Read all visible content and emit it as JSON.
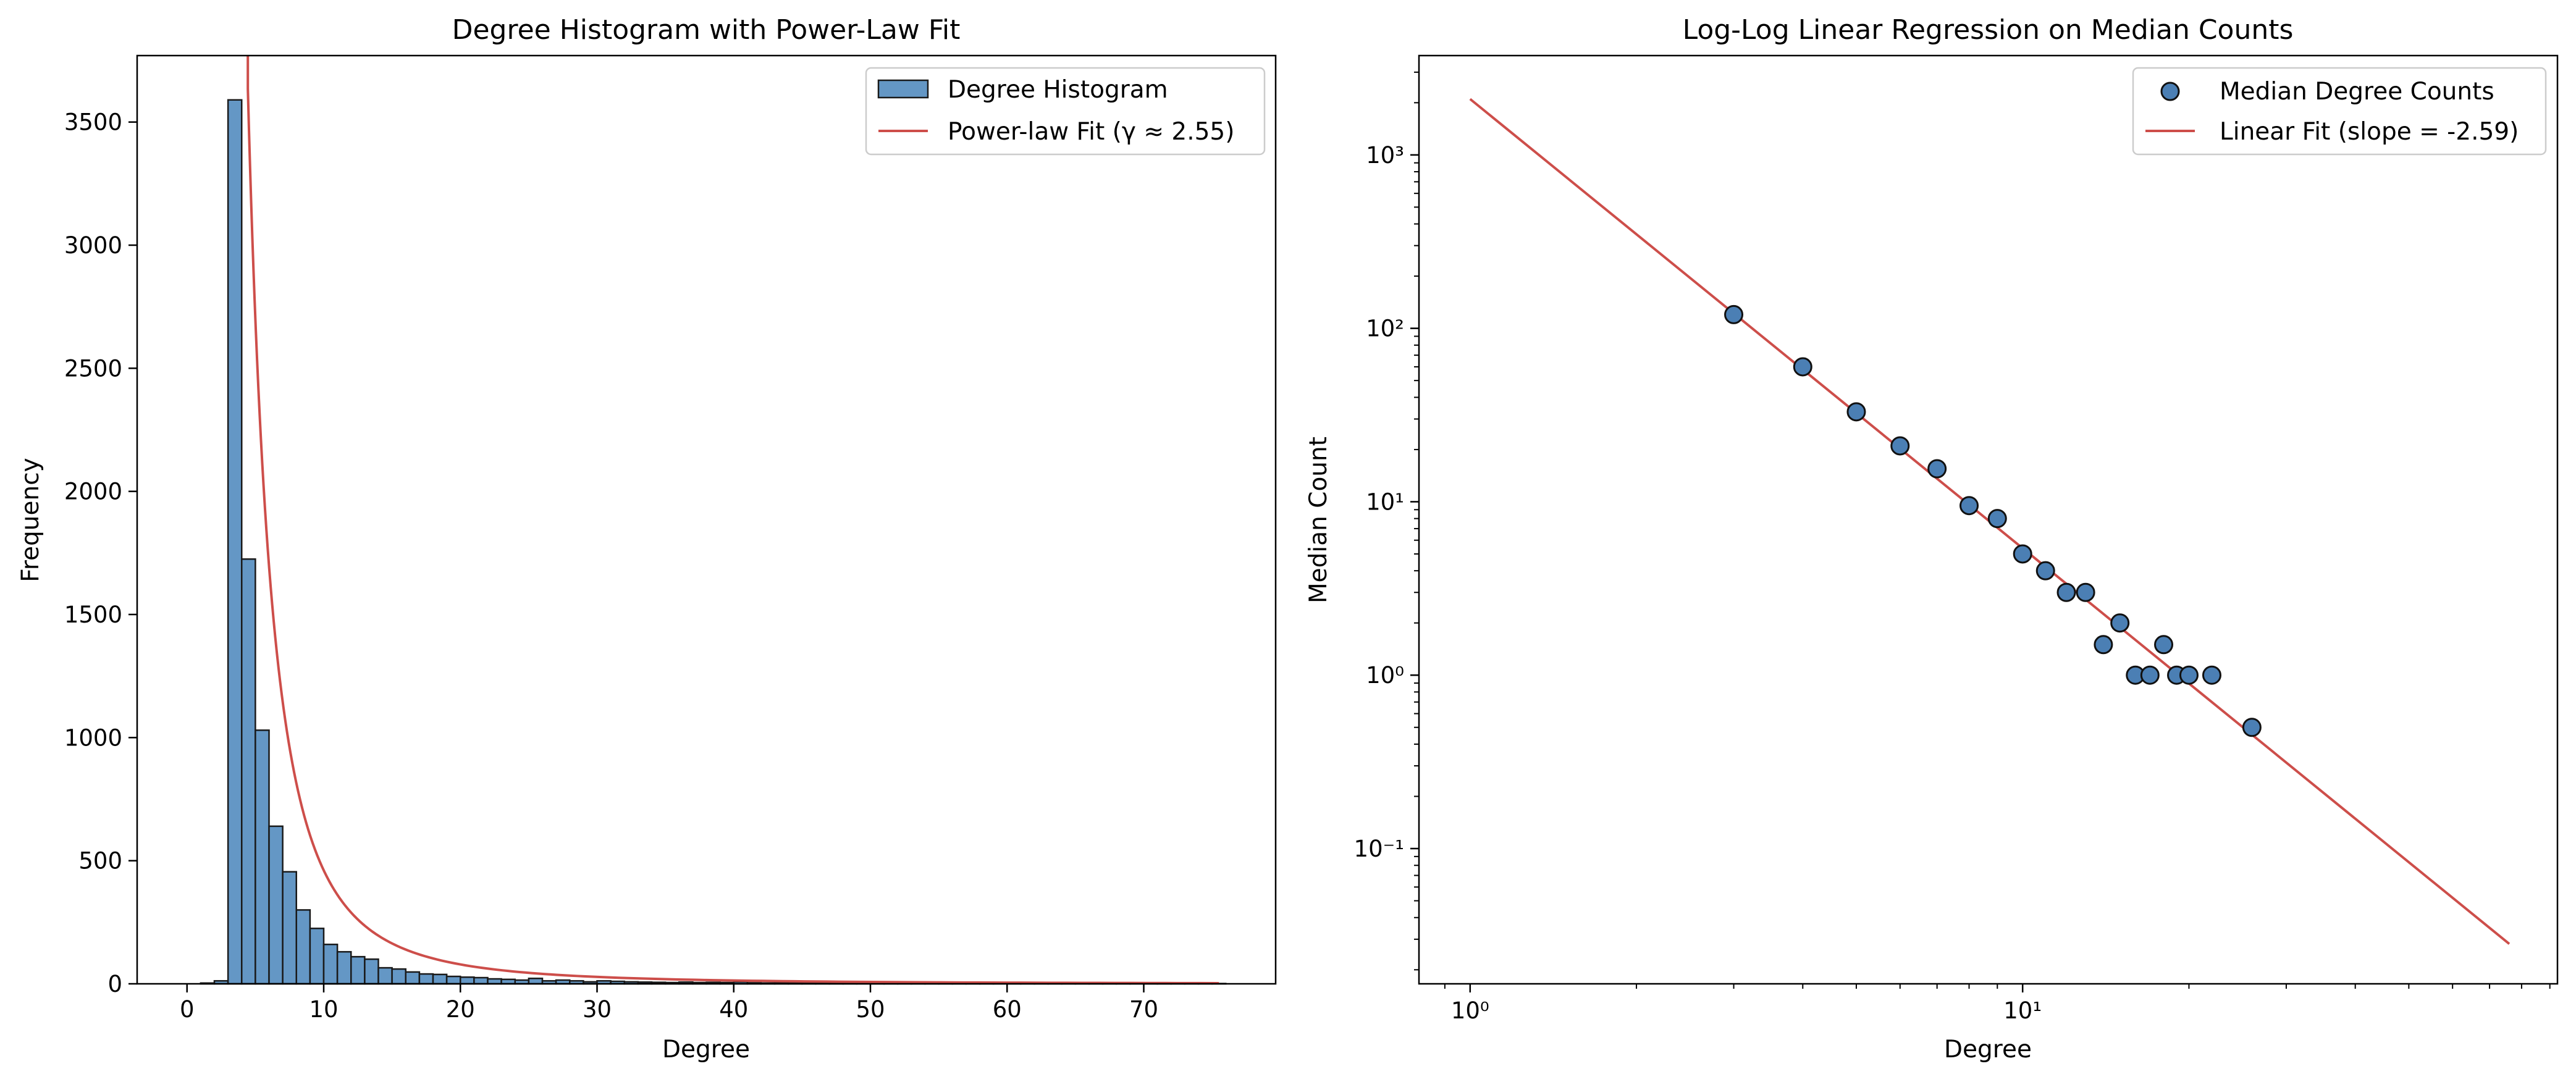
{
  "colors": {
    "bar_fill": "#6497c5",
    "bar_edge": "#1a1a1a",
    "fit_line": "#cd4e4a",
    "marker_fill": "#4b7fb4",
    "marker_edge": "#111111",
    "axes": "#000000"
  },
  "chart_data": [
    {
      "type": "bar",
      "title": "Degree Histogram with Power-Law Fit",
      "xlabel": "Degree",
      "ylabel": "Frequency",
      "xlim": [
        -3.65,
        79.65
      ],
      "ylim": [
        0,
        3770
      ],
      "xticks": [
        0,
        10,
        20,
        30,
        40,
        50,
        60,
        70
      ],
      "yticks": [
        0,
        500,
        1000,
        1500,
        2000,
        2500,
        3000,
        3500
      ],
      "grid": false,
      "legend_position": "top-right",
      "histogram": {
        "name": "Degree Histogram",
        "bin_start": 1,
        "bin_width": 1,
        "counts": [
          3,
          12,
          3590,
          1725,
          1030,
          640,
          455,
          300,
          225,
          160,
          130,
          110,
          100,
          65,
          60,
          48,
          40,
          38,
          30,
          27,
          25,
          20,
          18,
          15,
          22,
          12,
          15,
          12,
          8,
          12,
          10,
          8,
          7,
          6,
          5,
          7,
          5,
          6,
          5,
          8,
          4,
          3,
          4,
          3,
          3,
          2,
          2,
          3,
          2,
          2,
          2,
          3,
          2,
          2,
          1,
          1,
          1,
          1,
          2,
          1,
          1,
          1,
          1,
          1,
          1,
          1,
          1,
          1,
          1,
          1,
          1,
          1,
          1,
          1,
          1
        ]
      },
      "fit": {
        "name": "Power-law Fit (γ ≈ 2.55)",
        "gamma": 2.55,
        "x_min": 4.45,
        "x_max": 75.5,
        "value_at_5": 2700,
        "samples": 160
      },
      "legend": [
        "Degree Histogram",
        "Power-law Fit (γ ≈ 2.55)"
      ]
    },
    {
      "type": "scatter",
      "title": "Log-Log Linear Regression on Median Counts",
      "xlabel": "Degree",
      "ylabel": "Median Count",
      "xscale": "log",
      "yscale": "log",
      "xlim": [
        0.808,
        92.9
      ],
      "ylim": [
        0.0166,
        3740
      ],
      "xticks": [
        1,
        10
      ],
      "xtick_labels": [
        "10⁰",
        "10¹"
      ],
      "yticks": [
        0.1,
        1,
        10,
        100,
        1000
      ],
      "ytick_labels": [
        "10⁻¹",
        "10⁰",
        "10¹",
        "10²",
        "10³"
      ],
      "grid": false,
      "legend_position": "top-right",
      "series": [
        {
          "name": "Median Degree Counts",
          "x": [
            3,
            4,
            5,
            6,
            7,
            8,
            9,
            10,
            11,
            12,
            13,
            14,
            15,
            16,
            17,
            18,
            19,
            20,
            22,
            26
          ],
          "y": [
            120,
            60,
            33,
            21,
            15.5,
            9.5,
            8,
            5,
            4,
            3,
            3,
            1.5,
            2,
            1,
            1,
            1.5,
            1,
            1,
            1,
            0.5
          ]
        }
      ],
      "fit": {
        "name": "Linear Fit (slope = -2.59)",
        "slope": -2.59,
        "x": [
          1,
          76
        ],
        "y": [
          2100,
          0.0282
        ]
      },
      "legend": [
        "Median Degree Counts",
        "Linear Fit (slope = -2.59)"
      ]
    }
  ]
}
